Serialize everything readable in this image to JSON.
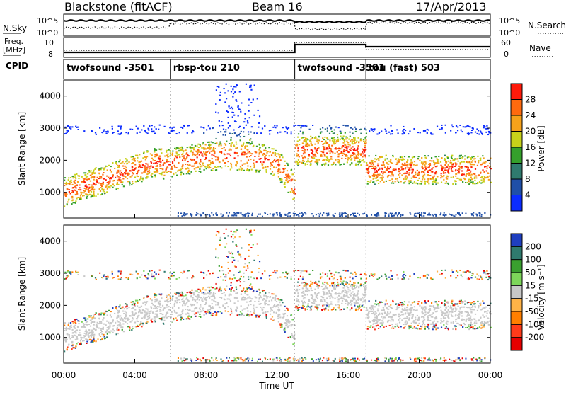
{
  "header": {
    "station": "Blackstone (fitACF)",
    "beam": "Beam 16",
    "date": "17/Apr/2013"
  },
  "top_panels": {
    "nsky_label": "N.Sky",
    "nsearch_label": "N.Search",
    "freq_label_1": "Freq.",
    "freq_label_2": "[MHz]",
    "nave_label": "Nave",
    "cpid_label": "CPID",
    "noise_ticks": [
      "10^5",
      "10^0"
    ],
    "freq_ticks": [
      "10",
      "8"
    ],
    "nave_ticks": [
      "60",
      "0"
    ],
    "cpid_segments": [
      {
        "label": "twofsound -3501",
        "start_h": 0.0,
        "end_h": 6.0
      },
      {
        "label": "rbsp-tou 210",
        "start_h": 6.0,
        "end_h": 13.0
      },
      {
        "label": "twofsound -3501",
        "start_h": 13.0,
        "end_h": 17.0
      },
      {
        "label": "tou (fast) 503",
        "start_h": 17.0,
        "end_h": 24.0
      }
    ]
  },
  "chart_data": [
    {
      "type": "heatmap",
      "title": "Power",
      "ylabel": "Slant Range [km]",
      "xlabel": "Time UT",
      "xlim": [
        0,
        24
      ],
      "ylim": [
        200,
        4500
      ],
      "x_ticks": [
        "00:00",
        "04:00",
        "08:00",
        "12:00",
        "16:00",
        "20:00",
        "00:00"
      ],
      "y_ticks": [
        1000,
        2000,
        3000,
        4000
      ],
      "colorbar_label": "Power [dB]",
      "colorbar_ticks": [
        4,
        8,
        12,
        16,
        20,
        24,
        28
      ],
      "colorbar_colors": [
        "#0b2cff",
        "#1f4fa8",
        "#2f7a6e",
        "#35a02b",
        "#c8d21a",
        "#f6a21a",
        "#ff6a0e",
        "#ff1a0a"
      ],
      "grid": false
    },
    {
      "type": "heatmap",
      "title": "Velocity",
      "ylabel": "Slant Range [km]",
      "xlabel": "Time UT",
      "xlim": [
        0,
        24
      ],
      "ylim": [
        200,
        4500
      ],
      "x_ticks": [
        "00:00",
        "04:00",
        "08:00",
        "12:00",
        "16:00",
        "20:00",
        "00:00"
      ],
      "y_ticks": [
        1000,
        2000,
        3000,
        4000
      ],
      "colorbar_label": "Velocity [m s⁻¹]",
      "colorbar_ticks": [
        200,
        100,
        50,
        15,
        -15,
        -50,
        -100,
        -200
      ],
      "colorbar_colors": [
        "#1f3fbf",
        "#2f7a6e",
        "#3aa02f",
        "#7dd65a",
        "#c8c8c8",
        "#ffb347",
        "#ff7f00",
        "#ff3b1a",
        "#e60000"
      ],
      "grid": false
    }
  ],
  "xaxis": {
    "title": "Time UT"
  }
}
